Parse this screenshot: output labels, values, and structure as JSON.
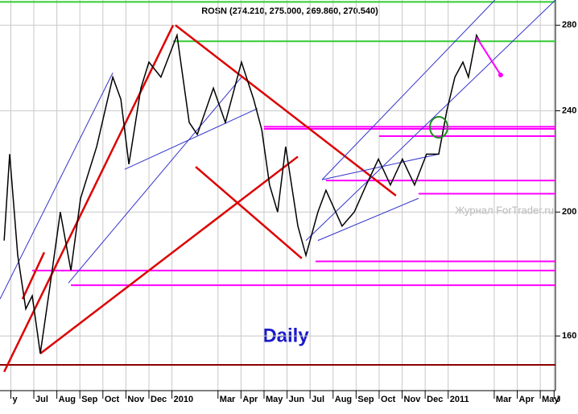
{
  "chart_data": {
    "type": "line",
    "title": "ROSN (274.210, 275.000, 269.860, 270.540)",
    "annotation": "Daily",
    "watermark": "Журнал ForTrader.ru",
    "log_scale": true,
    "grid": true,
    "x": [
      0.71,
      0.95,
      1.3,
      1.65,
      1.93,
      2.28,
      2.7,
      3.15,
      3.61,
      4.03,
      4.73,
      5.43,
      5.78,
      6.13,
      6.65,
      7.0,
      7.52,
      8.22,
      8.75,
      9.1,
      9.8,
      10.32,
      11.02,
      11.55,
      11.9,
      12.24,
      12.59,
      12.94,
      13.47,
      13.82,
      14.34,
      14.69,
      15.39,
      15.92,
      16.44,
      16.97,
      17.49,
      18.01,
      18.54,
      19.06,
      19.59,
      19.94,
      20.29,
      20.64,
      20.88,
      21.23,
      21.37
    ],
    "series": [
      {
        "name": "ROSN",
        "color": "#000000",
        "values": [
          190,
          222,
          185,
          168,
          172,
          155,
          175,
          200,
          180,
          205,
          225,
          255,
          245,
          218,
          250,
          262,
          255,
          275,
          235,
          230,
          250,
          235,
          262,
          245,
          232,
          210,
          200,
          225,
          195,
          185,
          200,
          208,
          195,
          200,
          210,
          220,
          210,
          220,
          210,
          222,
          222,
          240,
          255,
          262,
          255,
          275,
          272
        ]
      }
    ],
    "xlim": [
      0.53,
      24.66
    ],
    "ylim": [
      145,
      293
    ],
    "xticks": [
      {
        "value": 1,
        "label": "y"
      },
      {
        "value": 2,
        "label": "Jul"
      },
      {
        "value": 3,
        "label": "Aug"
      },
      {
        "value": 4,
        "label": "Sep"
      },
      {
        "value": 5,
        "label": "Oct"
      },
      {
        "value": 6,
        "label": "Nov"
      },
      {
        "value": 7,
        "label": "Dec"
      },
      {
        "value": 8,
        "label": "2010"
      },
      {
        "value": 10,
        "label": "Mar"
      },
      {
        "value": 11,
        "label": "Apr"
      },
      {
        "value": 12,
        "label": "May"
      },
      {
        "value": 13,
        "label": "Jun"
      },
      {
        "value": 14,
        "label": "Jul"
      },
      {
        "value": 15,
        "label": "Aug"
      },
      {
        "value": 16,
        "label": "Sep"
      },
      {
        "value": 17,
        "label": "Oct"
      },
      {
        "value": 18,
        "label": "Nov"
      },
      {
        "value": 19,
        "label": "Dec"
      },
      {
        "value": 20,
        "label": "2011"
      },
      {
        "value": 22,
        "label": "Mar"
      },
      {
        "value": 23,
        "label": "Apr"
      },
      {
        "value": 24,
        "label": "May"
      },
      {
        "value": 24.6,
        "label": "J"
      }
    ],
    "yticks": [
      160,
      200,
      240,
      280
    ],
    "levels": [
      {
        "value": 292,
        "from": 0.53,
        "color": "#33cc33"
      },
      {
        "value": 272,
        "from": 8.05,
        "color": "#33cc33"
      },
      {
        "value": 233.2,
        "from": 12.0,
        "color": "#ff00ff"
      },
      {
        "value": 232.3,
        "from": 12.0,
        "color": "#ff00ff"
      },
      {
        "value": 229.3,
        "from": 17.0,
        "color": "#ff00ff"
      },
      {
        "value": 211.7,
        "from": 14.69,
        "color": "#ff00ff"
      },
      {
        "value": 206.7,
        "from": 18.71,
        "color": "#ff00ff"
      },
      {
        "value": 183.0,
        "from": 14.24,
        "color": "#ff00ff"
      },
      {
        "value": 180.0,
        "from": 1.93,
        "color": "#ff00ff"
      },
      {
        "value": 175.3,
        "from": 3.61,
        "color": "#ff00ff"
      },
      {
        "value": 151.9,
        "from": 0.53,
        "color": "#8b0000"
      }
    ],
    "trendlines": [
      {
        "from": [
          0.71,
          150
        ],
        "to": [
          8.05,
          280
        ],
        "color": "#dd0000"
      },
      {
        "from": [
          8.15,
          280
        ],
        "to": [
          17.73,
          206
        ],
        "color": "#dd0000"
      },
      {
        "from": [
          9.03,
          217
        ],
        "to": [
          13.64,
          184
        ],
        "color": "#dd0000"
      },
      {
        "from": [
          2.28,
          155
        ],
        "to": [
          13.47,
          221
        ],
        "color": "#dd0000"
      },
      {
        "from": [
          1.51,
          171
        ],
        "to": [
          2.45,
          186
        ],
        "color": "#dd0000"
      },
      {
        "from": [
          13.82,
          190
        ],
        "to": [
          24.66,
          293
        ],
        "color": "#3333cc"
      },
      {
        "from": [
          14.52,
          212
        ],
        "to": [
          22.03,
          293
        ],
        "color": "#3333cc"
      },
      {
        "from": [
          14.52,
          212
        ],
        "to": [
          19.59,
          222
        ],
        "color": "#3333cc"
      },
      {
        "from": [
          14.34,
          190
        ],
        "to": [
          18.71,
          205
        ],
        "color": "#3333cc"
      },
      {
        "from": [
          3.5,
          176
        ],
        "to": [
          11.02,
          255
        ],
        "color": "#3333cc"
      },
      {
        "from": [
          0.53,
          171
        ],
        "to": [
          5.43,
          257
        ],
        "color": "#3333cc"
      },
      {
        "from": [
          5.95,
          216
        ],
        "to": [
          11.72,
          241
        ],
        "color": "#3333cc"
      }
    ],
    "forecast": {
      "from": [
        21.23,
        274
      ],
      "to": [
        22.28,
        256
      ],
      "color": "#ff00ff"
    },
    "highlight": {
      "x": 19.59,
      "value": 233,
      "color": "#228b22"
    }
  }
}
